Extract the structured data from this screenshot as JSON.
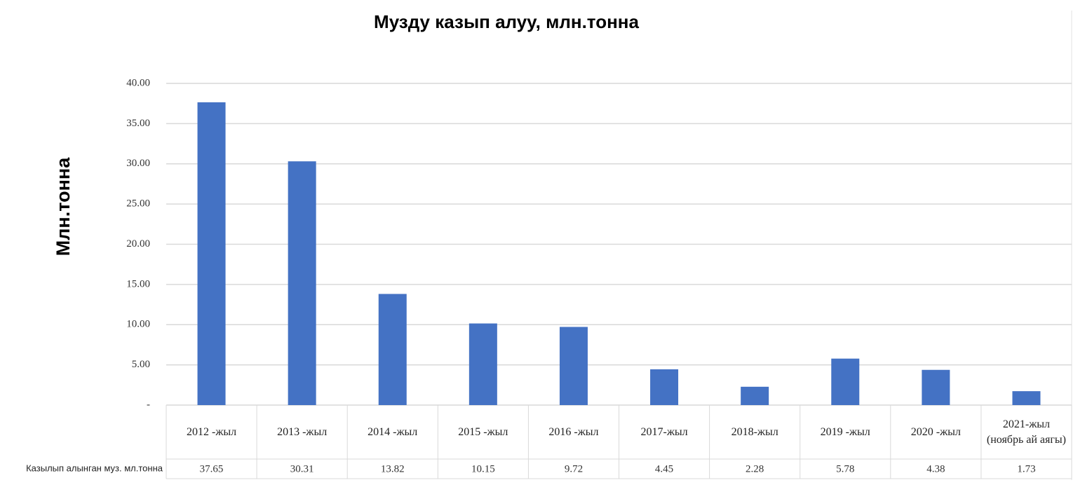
{
  "chart_data": {
    "type": "bar",
    "title": "Музду казып алуу, млн.тонна",
    "y_label": "Млн.тонна",
    "categories": [
      "2012 -жыл",
      "2013 -жыл",
      "2014 -жыл",
      "2015 -жыл",
      "2016 -жыл",
      "2017-жыл",
      "2018-жыл",
      "2019 -жыл",
      "2020 -жыл",
      "2021-жыл (ноябрь ай аягы)"
    ],
    "series": [
      {
        "name": "Казылып алынган муз. мл.тонна",
        "color": "#4472c4",
        "values": [
          37.65,
          30.31,
          13.82,
          10.15,
          9.72,
          4.45,
          2.28,
          5.78,
          4.38,
          1.73
        ]
      }
    ],
    "ylim": [
      0,
      40
    ],
    "yticks": [
      {
        "value": 0,
        "label": "-"
      },
      {
        "value": 5,
        "label": "5.00"
      },
      {
        "value": 10,
        "label": "10.00"
      },
      {
        "value": 15,
        "label": "15.00"
      },
      {
        "value": 20,
        "label": "20.00"
      },
      {
        "value": 25,
        "label": "25.00"
      },
      {
        "value": 30,
        "label": "30.00"
      },
      {
        "value": 35,
        "label": "35.00"
      },
      {
        "value": 40,
        "label": "40.00"
      }
    ],
    "grid": true
  }
}
